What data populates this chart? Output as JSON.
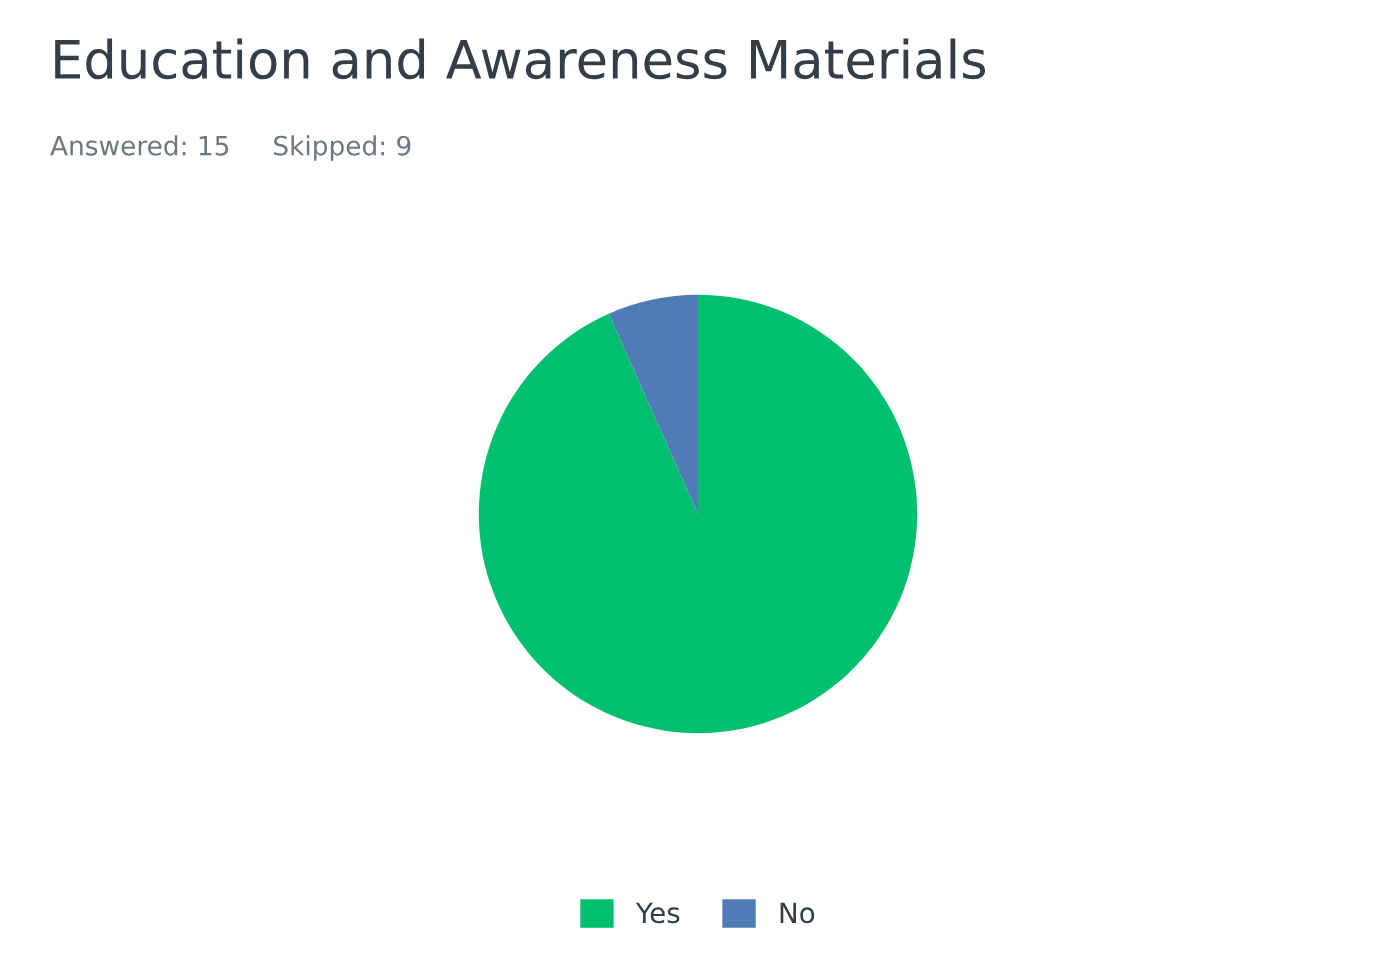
{
  "chart_data": {
    "type": "pie",
    "title": "Education and Awareness Materials",
    "subtitle": "Answered: 15     Skipped: 9",
    "categories": [
      "Yes",
      "No"
    ],
    "values": [
      93.33,
      6.67
    ],
    "colors": [
      "#00bf6f",
      "#507cb6"
    ],
    "legend": "bottom"
  }
}
